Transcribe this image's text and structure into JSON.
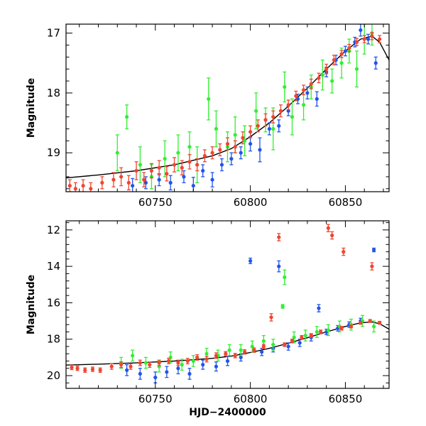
{
  "chart_data": [
    {
      "type": "scatter",
      "title": "",
      "xlabel": "",
      "ylabel": "Magnitude",
      "xlim": [
        60703,
        60873
      ],
      "ylim": [
        19.65,
        16.85
      ],
      "y_inverted": true,
      "x_ticks": [
        60750,
        60800,
        60850
      ],
      "y_ticks": [
        17,
        18,
        19
      ],
      "grid": false,
      "legend": "none",
      "model_curve": {
        "x": [
          60703,
          60720,
          60740,
          60760,
          60780,
          60790,
          60800,
          60810,
          60820,
          60830,
          60840,
          60850,
          60858,
          60864,
          60868,
          60873
        ],
        "y": [
          19.42,
          19.37,
          19.3,
          19.2,
          19.05,
          18.93,
          18.73,
          18.5,
          18.22,
          17.92,
          17.6,
          17.3,
          17.1,
          17.05,
          17.15,
          17.45
        ],
        "color": "#000000"
      },
      "series": [
        {
          "color": "#2155e8",
          "x": [
            60738,
            60745,
            60752,
            60758,
            60765,
            60770,
            60775,
            60780,
            60785,
            60790,
            60795,
            60800,
            60805,
            60810,
            60815,
            60820,
            60825,
            60830,
            60835,
            60840,
            60845,
            60850,
            60855,
            60858,
            60862,
            60866
          ],
          "y": [
            19.55,
            19.5,
            19.45,
            19.5,
            19.4,
            19.55,
            19.3,
            19.45,
            19.2,
            19.1,
            19.0,
            18.85,
            18.95,
            18.6,
            18.55,
            18.3,
            18.1,
            18.0,
            18.1,
            17.65,
            17.45,
            17.3,
            17.15,
            16.95,
            17.1,
            17.5
          ],
          "yerr": [
            0.12,
            0.1,
            0.1,
            0.12,
            0.1,
            0.14,
            0.1,
            0.12,
            0.1,
            0.1,
            0.1,
            0.12,
            0.2,
            0.1,
            0.1,
            0.08,
            0.08,
            0.1,
            0.12,
            0.08,
            0.08,
            0.08,
            0.08,
            0.1,
            0.08,
            0.1
          ]
        },
        {
          "color": "#33ee33",
          "x": [
            60730,
            60735,
            60742,
            60748,
            60755,
            60762,
            60768,
            60772,
            60778,
            60782,
            60788,
            60792,
            60797,
            60803,
            60808,
            60812,
            60818,
            60822,
            60828,
            60832,
            60838,
            60843,
            60848,
            60852,
            60856,
            60860,
            60864
          ],
          "y": [
            19.0,
            18.4,
            19.2,
            19.4,
            19.1,
            19.0,
            18.9,
            19.2,
            18.1,
            18.6,
            18.9,
            18.7,
            18.8,
            18.3,
            18.45,
            18.6,
            17.9,
            18.4,
            18.2,
            17.9,
            17.7,
            17.8,
            17.5,
            17.3,
            17.6,
            17.1,
            17.0
          ],
          "yerr": [
            0.3,
            0.2,
            0.3,
            0.2,
            0.3,
            0.3,
            0.25,
            0.3,
            0.35,
            0.3,
            0.25,
            0.3,
            0.25,
            0.3,
            0.2,
            0.35,
            0.25,
            0.3,
            0.25,
            0.2,
            0.25,
            0.2,
            0.25,
            0.2,
            0.3,
            0.25,
            0.2
          ]
        },
        {
          "color": "#f04530",
          "x": [
            60705,
            60708,
            60712,
            60716,
            60722,
            60728,
            60732,
            60736,
            60740,
            60744,
            60748,
            60752,
            60756,
            60760,
            60764,
            60768,
            60772,
            60776,
            60780,
            60784,
            60788,
            60792,
            60796,
            60800,
            60804,
            60808,
            60812,
            60816,
            60820,
            60824,
            60828,
            60832,
            60836,
            60840,
            60844,
            60848,
            60852,
            60856,
            60860,
            60864,
            60868
          ],
          "y": [
            19.55,
            19.6,
            19.55,
            19.6,
            19.5,
            19.45,
            19.4,
            19.5,
            19.3,
            19.45,
            19.3,
            19.25,
            19.35,
            19.2,
            19.25,
            19.15,
            19.2,
            19.05,
            19.0,
            18.95,
            18.85,
            18.9,
            18.75,
            18.65,
            18.55,
            18.45,
            18.4,
            18.3,
            18.2,
            18.05,
            17.95,
            17.85,
            17.75,
            17.6,
            17.45,
            17.35,
            17.25,
            17.15,
            17.1,
            17.05,
            17.1
          ],
          "yerr": [
            0.1,
            0.1,
            0.1,
            0.1,
            0.1,
            0.12,
            0.15,
            0.12,
            0.15,
            0.12,
            0.12,
            0.12,
            0.12,
            0.12,
            0.12,
            0.12,
            0.1,
            0.1,
            0.1,
            0.1,
            0.1,
            0.1,
            0.1,
            0.1,
            0.1,
            0.1,
            0.1,
            0.1,
            0.08,
            0.08,
            0.08,
            0.08,
            0.08,
            0.08,
            0.08,
            0.06,
            0.06,
            0.06,
            0.06,
            0.06,
            0.06
          ]
        }
      ]
    },
    {
      "type": "scatter",
      "title": "",
      "xlabel": "HJD−2400000",
      "ylabel": "Magnitude",
      "xlim": [
        60703,
        60873
      ],
      "ylim": [
        20.7,
        11.5
      ],
      "y_inverted": true,
      "x_ticks": [
        60750,
        60800,
        60850
      ],
      "y_ticks": [
        12,
        14,
        16,
        18,
        20
      ],
      "grid": false,
      "legend": "none",
      "model_curve": {
        "x": [
          60703,
          60720,
          60740,
          60760,
          60780,
          60790,
          60800,
          60810,
          60820,
          60830,
          60840,
          60850,
          60858,
          60864,
          60868,
          60873
        ],
        "y": [
          19.42,
          19.37,
          19.3,
          19.2,
          19.05,
          18.93,
          18.73,
          18.5,
          18.22,
          17.92,
          17.6,
          17.3,
          17.1,
          17.05,
          17.15,
          17.45
        ],
        "color": "#000000"
      },
      "series": [
        {
          "color": "#2155e8",
          "x": [
            60735,
            60742,
            60750,
            60756,
            60762,
            60768,
            60775,
            60782,
            60788,
            60795,
            60800,
            60806,
            60812,
            60815,
            60820,
            60826,
            60832,
            60836,
            60840,
            60846,
            60852,
            60858,
            60865
          ],
          "y": [
            19.7,
            19.9,
            20.1,
            19.8,
            19.6,
            19.9,
            19.4,
            19.5,
            19.2,
            19.0,
            13.7,
            18.7,
            18.5,
            14.0,
            18.4,
            18.2,
            17.9,
            16.3,
            17.6,
            17.4,
            17.2,
            17.0,
            13.1
          ],
          "yerr": [
            0.3,
            0.3,
            0.3,
            0.3,
            0.3,
            0.3,
            0.25,
            0.25,
            0.25,
            0.2,
            0.15,
            0.2,
            0.2,
            0.3,
            0.2,
            0.2,
            0.2,
            0.2,
            0.15,
            0.15,
            0.15,
            0.15,
            0.1
          ]
        },
        {
          "color": "#33ee33",
          "x": [
            60732,
            60738,
            60745,
            60752,
            60758,
            60764,
            60770,
            60777,
            60783,
            60789,
            60795,
            60801,
            60807,
            60812,
            60817,
            60818,
            60823,
            60829,
            60835,
            60841,
            60847,
            60853,
            60859,
            60865
          ],
          "y": [
            19.3,
            18.9,
            19.3,
            19.5,
            19.0,
            19.4,
            19.2,
            18.8,
            18.9,
            18.6,
            18.6,
            18.4,
            18.1,
            18.3,
            16.2,
            14.6,
            17.9,
            17.8,
            17.6,
            17.5,
            17.3,
            17.2,
            17.0,
            17.3
          ],
          "yerr": [
            0.3,
            0.3,
            0.3,
            0.3,
            0.3,
            0.3,
            0.3,
            0.3,
            0.3,
            0.3,
            0.3,
            0.3,
            0.3,
            0.3,
            0.1,
            0.4,
            0.3,
            0.3,
            0.3,
            0.3,
            0.3,
            0.3,
            0.3,
            0.3
          ]
        },
        {
          "color": "#f04530",
          "x": [
            60706,
            60709,
            60713,
            60717,
            60721,
            60727,
            60732,
            60737,
            60742,
            60747,
            60752,
            60757,
            60762,
            60767,
            60772,
            60777,
            60782,
            60787,
            60792,
            60797,
            60802,
            60807,
            60811,
            60815,
            60818,
            60822,
            60827,
            60832,
            60837,
            60841,
            60843,
            60848,
            60849,
            60853,
            60858,
            60863,
            60864,
            60868
          ],
          "y": [
            19.55,
            19.6,
            19.7,
            19.65,
            19.7,
            19.5,
            19.4,
            19.5,
            19.3,
            19.4,
            19.3,
            19.2,
            19.3,
            19.2,
            19.0,
            19.1,
            18.9,
            18.8,
            18.9,
            18.7,
            18.6,
            18.4,
            16.8,
            12.4,
            18.3,
            18.1,
            17.9,
            17.8,
            17.6,
            11.9,
            12.3,
            17.4,
            13.2,
            17.3,
            17.1,
            17.0,
            14.0,
            17.1
          ],
          "yerr": [
            0.12,
            0.12,
            0.12,
            0.12,
            0.12,
            0.15,
            0.15,
            0.15,
            0.15,
            0.15,
            0.15,
            0.15,
            0.15,
            0.15,
            0.15,
            0.15,
            0.15,
            0.12,
            0.12,
            0.12,
            0.12,
            0.12,
            0.2,
            0.2,
            0.1,
            0.1,
            0.1,
            0.1,
            0.1,
            0.2,
            0.2,
            0.1,
            0.2,
            0.08,
            0.08,
            0.08,
            0.2,
            0.08
          ]
        }
      ]
    }
  ]
}
